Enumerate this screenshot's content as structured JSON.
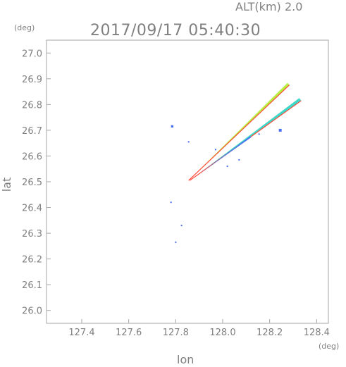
{
  "header": {
    "altitude_label": "ALT(km)",
    "altitude_value": "2.0",
    "datetime": "2017/09/17 05:40:30"
  },
  "chart_data": {
    "type": "heatmap",
    "title": "2017/09/17 05:40:30",
    "xlabel": "lon",
    "ylabel": "lat",
    "x_unit": "(deg)",
    "y_unit": "(deg)",
    "xlim": [
      127.25,
      128.45
    ],
    "ylim": [
      25.95,
      27.05
    ],
    "x_ticks": [
      "127.4",
      "127.6",
      "127.8",
      "128.0",
      "128.2",
      "128.4"
    ],
    "y_ticks": [
      "26.0",
      "26.1",
      "26.2",
      "26.3",
      "26.4",
      "26.5",
      "26.6",
      "26.7",
      "26.8",
      "26.9",
      "27.0"
    ],
    "grid": false,
    "colors": {
      "strong": "#ff4a3a",
      "moderate": "#b8f040",
      "light": "#5ee88a",
      "cyan": "#3ed8c8",
      "weak": "#4a6ef0"
    },
    "features": [
      {
        "kind": "band",
        "name": "upper-echo-band",
        "lon_start": 127.855,
        "lat_start": 26.505,
        "lon_end": 128.28,
        "lat_end": 26.88,
        "width": 0.012,
        "color": "moderate",
        "edge": "strong"
      },
      {
        "kind": "band",
        "name": "lower-echo-band",
        "lon_start": 127.86,
        "lat_start": 26.505,
        "lon_end": 128.33,
        "lat_end": 26.82,
        "width": 0.014,
        "color": "cyan",
        "edge": "strong"
      },
      {
        "kind": "band",
        "name": "lower-echo-band-weak-edge",
        "lon_start": 127.9,
        "lat_start": 26.53,
        "lon_end": 128.12,
        "lat_end": 26.675,
        "width": 0.006,
        "color": "weak"
      },
      {
        "kind": "spot",
        "lon": 127.785,
        "lat": 26.715,
        "size": 0.01,
        "color": "weak"
      },
      {
        "kind": "spot",
        "lon": 128.245,
        "lat": 26.7,
        "size": 0.012,
        "color": "weak"
      },
      {
        "kind": "spot",
        "lon": 128.155,
        "lat": 26.685,
        "size": 0.005,
        "color": "weak"
      },
      {
        "kind": "spot",
        "lon": 127.97,
        "lat": 26.625,
        "size": 0.005,
        "color": "weak"
      },
      {
        "kind": "spot",
        "lon": 128.02,
        "lat": 26.56,
        "size": 0.005,
        "color": "weak"
      },
      {
        "kind": "spot",
        "lon": 128.07,
        "lat": 26.585,
        "size": 0.003,
        "color": "weak"
      },
      {
        "kind": "spot",
        "lon": 127.855,
        "lat": 26.655,
        "size": 0.003,
        "color": "weak"
      },
      {
        "kind": "spot",
        "lon": 127.78,
        "lat": 26.42,
        "size": 0.006,
        "color": "weak"
      },
      {
        "kind": "spot",
        "lon": 127.825,
        "lat": 26.33,
        "size": 0.002,
        "color": "weak"
      },
      {
        "kind": "spot",
        "lon": 127.8,
        "lat": 26.265,
        "size": 0.002,
        "color": "weak"
      }
    ]
  }
}
